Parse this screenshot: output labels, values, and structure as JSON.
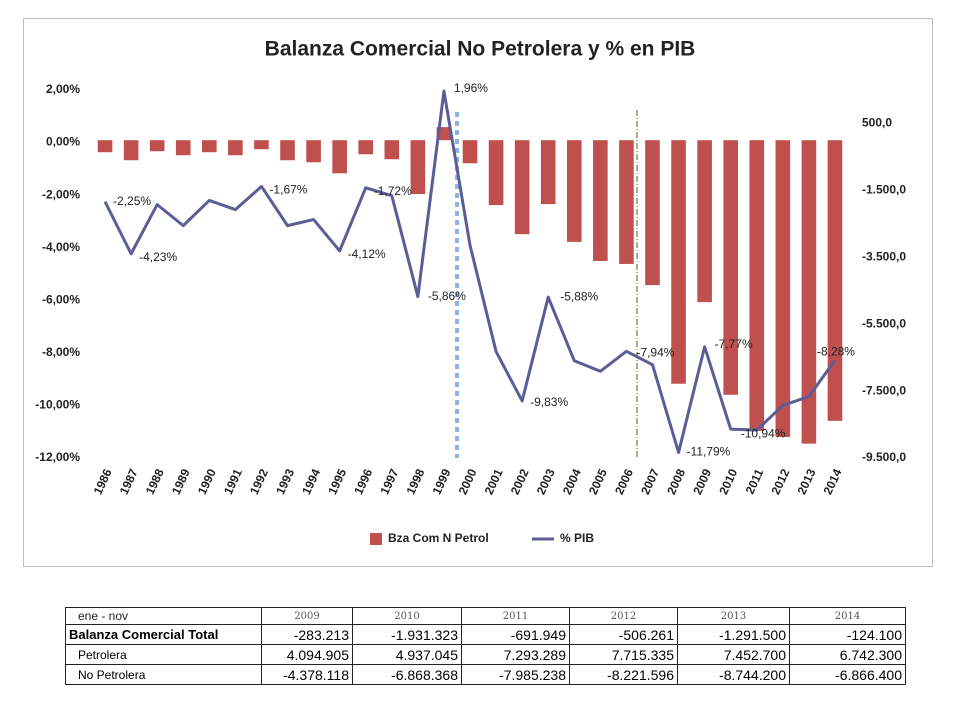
{
  "chart_data": {
    "type": "bar_line",
    "title": "Balanza Comercial No Petrolera y % en PIB",
    "categories": [
      "1986",
      "1987",
      "1988",
      "1989",
      "1990",
      "1991",
      "1992",
      "1993",
      "1994",
      "1995",
      "1996",
      "1997",
      "1998",
      "1999",
      "2000",
      "2001",
      "2002",
      "2003",
      "2004",
      "2005",
      "2006",
      "2007",
      "2008",
      "2009",
      "2010",
      "2011",
      "2012",
      "2013",
      "2014"
    ],
    "series": [
      {
        "name": "Bza Com N Petrol",
        "type": "bar",
        "axis": "y2",
        "color": "#c0504d",
        "values": [
          -360,
          -600,
          -330,
          -450,
          -360,
          -450,
          -270,
          -600,
          -660,
          -990,
          -420,
          -570,
          -1610,
          390,
          -690,
          -1940,
          -2810,
          -1910,
          -3040,
          -3610,
          -3700,
          -4330,
          -7280,
          -4840,
          -7610,
          -8690,
          -8870,
          -9070,
          -8390
        ]
      },
      {
        "name": "% PIB",
        "type": "line",
        "axis": "y",
        "color": "#5b5e96",
        "values": [
          -2.25,
          -4.23,
          -2.36,
          -3.16,
          -2.2,
          -2.55,
          -1.67,
          -3.16,
          -2.93,
          -4.12,
          -1.72,
          -2.02,
          -5.86,
          1.96,
          -3.9,
          -7.95,
          -9.83,
          -5.88,
          -8.3,
          -8.7,
          -7.94,
          -8.45,
          -11.79,
          -7.77,
          -10.9,
          -10.94,
          -10.0,
          -9.66,
          -8.28
        ],
        "value_labels": [
          "-2,25%",
          "-4,23%",
          null,
          null,
          null,
          null,
          "-1,67%",
          null,
          null,
          "-4,12%",
          "-1,72%",
          null,
          "-5,86%",
          "1,96%",
          null,
          null,
          "-9,83%",
          "-5,88%",
          null,
          null,
          "-7,94%",
          null,
          "-11,79%",
          "-7,77%",
          null,
          "-10,94%",
          null,
          null,
          "-8,28%"
        ]
      }
    ],
    "ylim": [
      -12,
      2
    ],
    "yticks": [
      {
        "value": 2,
        "label": "2,00%"
      },
      {
        "value": 0,
        "label": "0,00%"
      },
      {
        "value": -2,
        "label": "-2,00%"
      },
      {
        "value": -4,
        "label": "-4,00%"
      },
      {
        "value": -6,
        "label": "-6,00%"
      },
      {
        "value": -8,
        "label": "-8,00%"
      },
      {
        "value": -10,
        "label": "-10,00%"
      },
      {
        "value": -12,
        "label": "-12,00%"
      }
    ],
    "y2lim": [
      -9500,
      1500
    ],
    "y2ticks": [
      {
        "value": 500,
        "label": "500,0"
      },
      {
        "value": -1500,
        "label": "-1.500,0"
      },
      {
        "value": -3500,
        "label": "-3.500,0"
      },
      {
        "value": -5500,
        "label": "-5.500,0"
      },
      {
        "value": -7500,
        "label": "-7.500,0"
      },
      {
        "value": -9500,
        "label": "-9.500,0"
      }
    ],
    "grid": false,
    "legend": "bottom"
  },
  "table": {
    "header": [
      "ene -  nov",
      "2009",
      "2010",
      "2011",
      "2012",
      "2013",
      "2014"
    ],
    "rows": [
      [
        "Balanza Comercial Total",
        "-283.213",
        "-1.931.323",
        "-691.949",
        "-506.261",
        "-1.291.500",
        "-124.100"
      ],
      [
        "Petrolera",
        "4.094.905",
        "4.937.045",
        "7.293.289",
        "7.715.335",
        "7.452.700",
        "6.742.300"
      ],
      [
        "No Petrolera",
        "-4.378.118",
        "-6.868.368",
        "-7.985.238",
        "-8.221.596",
        "-8.744.200",
        "-6.866.400"
      ]
    ]
  }
}
